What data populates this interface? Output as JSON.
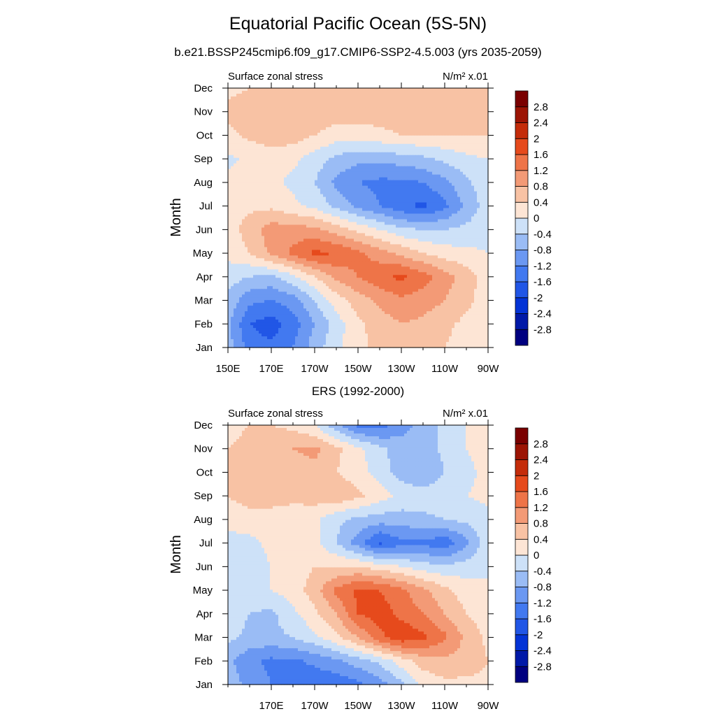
{
  "page": {
    "title": "Equatorial Pacific Ocean (5S-5N)",
    "subtitle": "b.e21.BSSP245cmip6.f09_g17.CMIP6-SSP2-4.5.003 (yrs 2035-2059)"
  },
  "colorbar": {
    "levels": [
      -2.8,
      -2.4,
      -2,
      -1.6,
      -1.2,
      -0.8,
      -0.4,
      0,
      0.4,
      0.8,
      1.2,
      1.6,
      2,
      2.4,
      2.8
    ],
    "labels": [
      "-2.8",
      "-2.4",
      "-2",
      "-1.6",
      "-1.2",
      "-0.8",
      "-0.4",
      "0",
      "0.4",
      "0.8",
      "1.2",
      "1.6",
      "2",
      "2.4",
      "2.8"
    ],
    "colors": [
      "#000080",
      "#0019a8",
      "#0333d6",
      "#2156e6",
      "#4279f0",
      "#6b98f2",
      "#9abcf5",
      "#cde1f8",
      "#fde5d5",
      "#f8c2a4",
      "#f39a76",
      "#ee7448",
      "#e64a1c",
      "#c42c0a",
      "#9c1404",
      "#7a0000"
    ]
  },
  "chart_data": [
    {
      "type": "heatmap",
      "title": "",
      "left_label": "Surface zonal stress",
      "right_label": "N/m² x.01",
      "xlabel": "",
      "ylabel": "Month",
      "x_tick_labels": [
        "150E",
        "170E",
        "170W",
        "150W",
        "130W",
        "110W",
        "90W"
      ],
      "x_tick_lons": [
        150,
        170,
        190,
        210,
        230,
        250,
        270
      ],
      "y_tick_labels": [
        "Jan",
        "Feb",
        "Mar",
        "Apr",
        "May",
        "Jun",
        "Jul",
        "Aug",
        "Sep",
        "Oct",
        "Nov",
        "Dec"
      ],
      "xlim": [
        150,
        270
      ],
      "ylim": [
        1,
        12
      ],
      "lon": [
        150,
        160,
        170,
        180,
        190,
        200,
        210,
        220,
        230,
        240,
        250,
        260,
        270
      ],
      "months": [
        1,
        2,
        3,
        4,
        5,
        6,
        7,
        8,
        9,
        10,
        11,
        12
      ],
      "values": [
        [
          -0.6,
          -1.4,
          -1.5,
          -1.2,
          -0.6,
          -0.1,
          0.3,
          0.5,
          0.7,
          0.6,
          0.4,
          0.2,
          0.1
        ],
        [
          -0.7,
          -1.6,
          -1.8,
          -1.4,
          -0.8,
          -0.2,
          0.3,
          0.6,
          0.8,
          0.7,
          0.5,
          0.3,
          0.2
        ],
        [
          -0.5,
          -1.1,
          -1.2,
          -1.0,
          -0.4,
          0.2,
          0.6,
          0.9,
          1.1,
          1.0,
          0.8,
          0.5,
          0.2
        ],
        [
          -0.2,
          -0.4,
          -0.5,
          -0.1,
          0.4,
          0.9,
          1.2,
          1.5,
          1.7,
          1.4,
          1.0,
          0.6,
          0.2
        ],
        [
          0.1,
          0.4,
          0.9,
          1.3,
          1.7,
          1.6,
          1.3,
          1.0,
          0.7,
          0.4,
          0.2,
          0.1,
          0.0
        ],
        [
          0.2,
          0.6,
          1.0,
          1.0,
          0.9,
          0.6,
          0.3,
          0.0,
          -0.3,
          -0.4,
          -0.4,
          -0.3,
          -0.1
        ],
        [
          0.2,
          0.3,
          0.3,
          0.1,
          -0.1,
          -0.5,
          -0.9,
          -1.2,
          -1.5,
          -1.7,
          -1.3,
          -0.7,
          -0.2
        ],
        [
          0.1,
          0.2,
          0.1,
          -0.1,
          -0.4,
          -0.9,
          -1.2,
          -1.3,
          -1.3,
          -1.2,
          -0.9,
          -0.5,
          -0.1
        ],
        [
          -0.1,
          0.1,
          0.2,
          0.1,
          -0.2,
          -0.5,
          -0.7,
          -0.7,
          -0.6,
          -0.5,
          -0.3,
          -0.1,
          0.0
        ],
        [
          0.3,
          0.5,
          0.6,
          0.6,
          0.4,
          0.2,
          0.2,
          0.3,
          0.4,
          0.4,
          0.4,
          0.4,
          0.4
        ],
        [
          0.5,
          0.6,
          0.7,
          0.7,
          0.7,
          0.6,
          0.6,
          0.6,
          0.6,
          0.5,
          0.5,
          0.5,
          0.5
        ],
        [
          0.3,
          0.4,
          0.5,
          0.5,
          0.6,
          0.6,
          0.6,
          0.5,
          0.5,
          0.5,
          0.4,
          0.4,
          0.4
        ]
      ]
    },
    {
      "type": "heatmap",
      "title": "ERS (1992-2000)",
      "left_label": "Surface zonal stress",
      "right_label": "N/m² x.01",
      "xlabel": "",
      "ylabel": "Month",
      "x_tick_labels": [
        "170E",
        "170W",
        "150W",
        "130W",
        "110W",
        "90W"
      ],
      "x_tick_lons": [
        170,
        190,
        210,
        230,
        250,
        270
      ],
      "y_tick_labels": [
        "Jan",
        "Feb",
        "Mar",
        "Apr",
        "May",
        "Jun",
        "Jul",
        "Aug",
        "Sep",
        "Oct",
        "Nov",
        "Dec"
      ],
      "xlim": [
        150,
        270
      ],
      "ylim": [
        1,
        12
      ],
      "lon": [
        150,
        160,
        170,
        180,
        190,
        200,
        210,
        220,
        230,
        240,
        250,
        260,
        270
      ],
      "months": [
        1,
        2,
        3,
        4,
        5,
        6,
        7,
        8,
        9,
        10,
        11,
        12
      ],
      "values": [
        [
          -0.6,
          -0.9,
          -1.2,
          -1.4,
          -1.5,
          -1.5,
          -1.3,
          -1.0,
          -0.5,
          0.1,
          0.3,
          0.3,
          0.3
        ],
        [
          -0.7,
          -1.1,
          -1.3,
          -1.3,
          -1.1,
          -0.9,
          -0.6,
          -0.3,
          0.2,
          0.6,
          0.7,
          0.6,
          0.4
        ],
        [
          -0.3,
          -0.5,
          -0.5,
          -0.4,
          -0.1,
          0.3,
          0.8,
          1.5,
          1.9,
          1.7,
          1.3,
          0.7,
          0.3
        ],
        [
          -0.2,
          -0.4,
          -0.5,
          -0.1,
          0.3,
          0.8,
          1.6,
          1.8,
          1.5,
          1.2,
          0.8,
          0.4,
          0.2
        ],
        [
          0.0,
          -0.1,
          0.0,
          0.2,
          0.6,
          1.3,
          1.7,
          1.6,
          1.3,
          0.9,
          0.5,
          0.2,
          0.1
        ],
        [
          -0.3,
          -0.2,
          0.0,
          0.2,
          0.4,
          0.4,
          0.4,
          0.2,
          0.0,
          -0.2,
          -0.3,
          -0.2,
          -0.1
        ],
        [
          -0.2,
          -0.1,
          0.1,
          0.2,
          0.1,
          -0.4,
          -1.0,
          -1.7,
          -1.3,
          -1.3,
          -1.5,
          -0.9,
          -0.1
        ],
        [
          0.2,
          0.2,
          0.2,
          0.2,
          0.1,
          -0.3,
          -0.5,
          -0.6,
          -0.6,
          -0.5,
          -0.4,
          -0.3,
          -0.1
        ],
        [
          0.4,
          0.6,
          0.6,
          0.5,
          0.6,
          0.7,
          0.5,
          0.2,
          -0.1,
          -0.2,
          -0.1,
          0.0,
          0.1
        ],
        [
          0.5,
          0.6,
          0.7,
          0.6,
          0.7,
          0.4,
          0.2,
          -0.2,
          -0.6,
          -0.8,
          -0.4,
          -0.1,
          0.1
        ],
        [
          0.4,
          0.5,
          0.6,
          0.8,
          0.9,
          0.5,
          0.1,
          -0.3,
          -0.6,
          -0.6,
          -0.3,
          0.0,
          0.2
        ],
        [
          0.3,
          0.4,
          0.4,
          0.3,
          0.0,
          -0.7,
          -1.3,
          -1.4,
          -1.0,
          -0.6,
          -0.3,
          0.0,
          0.2
        ]
      ]
    }
  ]
}
